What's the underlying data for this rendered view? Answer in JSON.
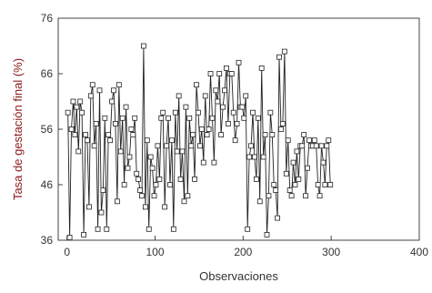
{
  "chart_data": {
    "type": "line",
    "title": "",
    "xlabel": "Observaciones",
    "ylabel": "Tasa de gestación final (%)",
    "xlim": [
      -10,
      400
    ],
    "ylim": [
      36,
      76
    ],
    "xticks": [
      0,
      100,
      200,
      300,
      400
    ],
    "yticks": [
      36,
      46,
      56,
      66,
      76
    ],
    "grid": false,
    "colors": {
      "line": "#222222",
      "marker_stroke": "#222222",
      "ylabel": "#8b1a1a",
      "xlabel": "#333333"
    },
    "series": [
      {
        "marker": "open-square",
        "x": [
          1,
          3,
          5,
          7,
          9,
          11,
          13,
          15,
          17,
          19,
          21,
          23,
          25,
          27,
          29,
          31,
          33,
          35,
          37,
          39,
          41,
          43,
          45,
          47,
          49,
          51,
          53,
          55,
          57,
          59,
          61,
          63,
          65,
          67,
          69,
          71,
          73,
          75,
          77,
          79,
          81,
          83,
          85,
          87,
          89,
          91,
          93,
          95,
          97,
          99,
          101,
          103,
          105,
          107,
          109,
          111,
          113,
          115,
          117,
          119,
          121,
          123,
          125,
          127,
          129,
          131,
          133,
          135,
          137,
          139,
          141,
          143,
          145,
          147,
          149,
          151,
          153,
          155,
          157,
          159,
          161,
          163,
          165,
          167,
          169,
          171,
          173,
          175,
          177,
          179,
          181,
          183,
          185,
          187,
          189,
          191,
          193,
          195,
          197,
          199,
          201,
          203,
          205,
          207,
          209,
          211,
          213,
          215,
          217,
          219,
          221,
          223,
          225,
          227,
          229,
          231,
          233,
          235,
          237,
          239,
          241,
          243,
          245,
          247,
          249,
          251,
          253,
          255,
          257,
          259,
          261,
          263,
          265,
          267,
          269,
          271,
          273,
          275,
          277,
          279,
          281,
          283,
          285,
          287,
          289,
          291,
          293,
          295,
          297,
          299
        ],
        "y": [
          59,
          36.5,
          56,
          61,
          55,
          60,
          52,
          61,
          59,
          37,
          55,
          54,
          42,
          62,
          64,
          53,
          57,
          38,
          63,
          41,
          45,
          58,
          38,
          55,
          54,
          61,
          63,
          57,
          43,
          64,
          52,
          58,
          46,
          60,
          49,
          51,
          56,
          55,
          58,
          48,
          47,
          45,
          44,
          71,
          42,
          54,
          38,
          51,
          49,
          44,
          46,
          53,
          47,
          58,
          59,
          42,
          53,
          58,
          46,
          54,
          38,
          59,
          52,
          62,
          47,
          52,
          43,
          60,
          44,
          58,
          53,
          55,
          47,
          64,
          59,
          53,
          56,
          50,
          62,
          55,
          56,
          66,
          58,
          50,
          63,
          61,
          66,
          55,
          60,
          63,
          67,
          57,
          66,
          66,
          59,
          54,
          57,
          68,
          60,
          60,
          58,
          62,
          38,
          51,
          53,
          59,
          51,
          47,
          58,
          43,
          67,
          51,
          55,
          37,
          44,
          59,
          55,
          46,
          45,
          40,
          69,
          56,
          57,
          70,
          48,
          54,
          45,
          44,
          50,
          46,
          52,
          47,
          53,
          53,
          55,
          44,
          49,
          54,
          53,
          53,
          54,
          53,
          46,
          44,
          53,
          50,
          46,
          53,
          54,
          46
        ]
      }
    ]
  }
}
